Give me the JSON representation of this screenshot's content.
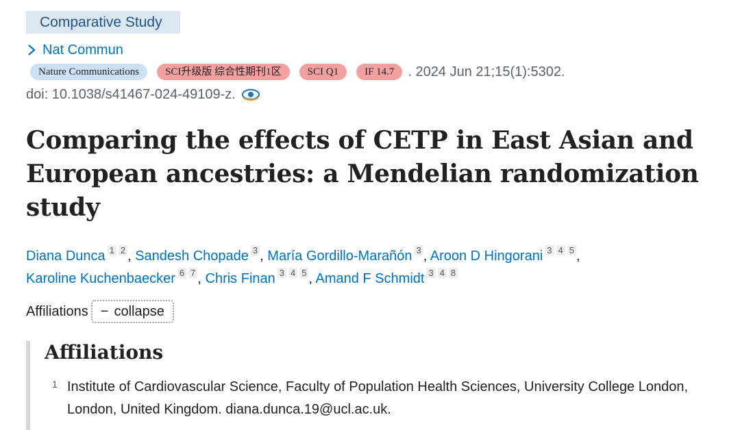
{
  "publication_type": "Comparative Study",
  "journal": {
    "link_label": "Nat Commun",
    "badges": [
      {
        "label": "Nature Communications",
        "color": "#cbe1f5"
      },
      {
        "label": "SCI升级版 综合性期刊1区",
        "color": "#f3a0a0"
      },
      {
        "label": "SCI Q1",
        "color": "#f3a0a0"
      },
      {
        "label": "IF 14.7",
        "color": "#f3a0a0"
      }
    ],
    "citation": ". 2024 Jun 21;15(1):5302.",
    "doi": "doi: 10.1038/s41467-024-49109-z.",
    "fulltext_icon": "eye-icon"
  },
  "title": "Comparing the effects of CETP in East Asian and European ancestries: a Mendelian randomization study",
  "authors": [
    {
      "name": "Diana Dunca",
      "affils": [
        "1",
        "2"
      ],
      "sep": ", "
    },
    {
      "name": "Sandesh Chopade",
      "affils": [
        "3"
      ],
      "sep": ", "
    },
    {
      "name": "María Gordillo-Marañón",
      "affils": [
        "3"
      ],
      "sep": ", "
    },
    {
      "name": "Aroon D Hingorani",
      "affils": [
        "3",
        "4",
        "5"
      ],
      "sep": ","
    },
    {
      "name": "Karoline Kuchenbaecker",
      "affils": [
        "6",
        "7"
      ],
      "sep": ", "
    },
    {
      "name": "Chris Finan",
      "affils": [
        "3",
        "4",
        "5"
      ],
      "sep": ", "
    },
    {
      "name": "Amand F Schmidt",
      "affils": [
        "3",
        "4",
        "8"
      ],
      "sep": ""
    }
  ],
  "affiliations_toggle": {
    "label": "Affiliations",
    "button_symbol": "−",
    "button_label": "collapse"
  },
  "affiliations_panel": {
    "heading": "Affiliations",
    "items": [
      {
        "num": "1",
        "text": "Institute of Cardiovascular Science, Faculty of Population Health Sciences, University College London, London, United Kingdom. diana.dunca.19@ucl.ac.uk."
      }
    ]
  },
  "colors": {
    "link": "#0071bc",
    "pubtype_bg": "#dbe6f0",
    "panel_border": "#d6d6d6"
  }
}
